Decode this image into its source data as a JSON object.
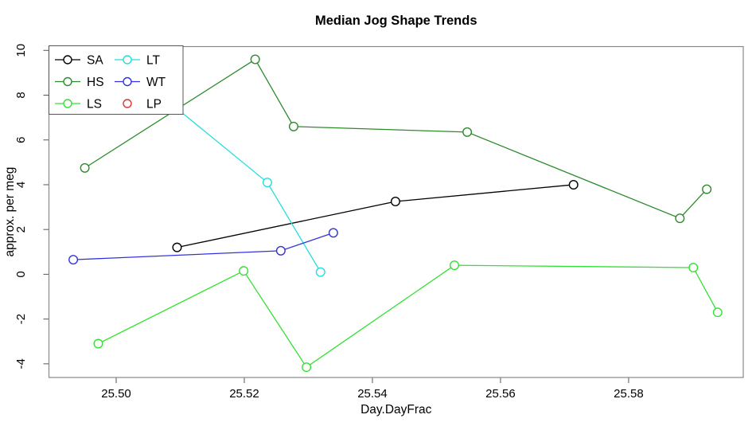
{
  "title": "Median Jog Shape Trends",
  "chart_data": {
    "type": "line",
    "title": "Median Jog Shape Trends",
    "xlabel": "Day.DayFrac",
    "ylabel": "approx. per meg",
    "xlim": [
      25.4895,
      25.5979
    ],
    "ylim": [
      -4.61,
      10.17
    ],
    "x_ticks": [
      25.5,
      25.52,
      25.54,
      25.56,
      25.58
    ],
    "x_tick_labels": [
      "25.50",
      "25.52",
      "25.54",
      "25.56",
      "25.58"
    ],
    "y_ticks": [
      -4,
      -2,
      0,
      2,
      4,
      6,
      8,
      10
    ],
    "y_tick_labels": [
      "-4",
      "-2",
      "0",
      "2",
      "4",
      "6",
      "8",
      "10"
    ],
    "grid": false,
    "marker": "open-circle",
    "legend_position": "topleft",
    "legend_columns": 2,
    "series": [
      {
        "name": "SA",
        "color": "#000000",
        "points": [
          [
            25.5095,
            1.2
          ],
          [
            25.5436,
            3.25
          ],
          [
            25.5714,
            4.0
          ]
        ]
      },
      {
        "name": "HS",
        "color": "#2E8B2E",
        "points": [
          [
            25.4951,
            4.75
          ],
          [
            25.5217,
            9.6
          ],
          [
            25.5277,
            6.6
          ],
          [
            25.5548,
            6.35
          ],
          [
            25.588,
            2.5
          ],
          [
            25.5922,
            3.8
          ]
        ]
      },
      {
        "name": "LS",
        "color": "#35E035",
        "points": [
          [
            25.4972,
            -3.1
          ],
          [
            25.5199,
            0.15
          ],
          [
            25.5297,
            -4.15
          ],
          [
            25.5528,
            0.4
          ],
          [
            25.5901,
            0.3
          ],
          [
            25.5939,
            -1.7
          ]
        ]
      },
      {
        "name": "LT",
        "color": "#25DEDE",
        "points": [
          [
            25.502,
            9.15
          ],
          [
            25.5236,
            4.1
          ],
          [
            25.5319,
            0.1
          ]
        ]
      },
      {
        "name": "WT",
        "color": "#3333DD",
        "points": [
          [
            25.4933,
            0.65
          ],
          [
            25.5257,
            1.05
          ],
          [
            25.5339,
            1.85
          ]
        ]
      },
      {
        "name": "LP",
        "color": "#DD3333",
        "points": []
      }
    ]
  }
}
